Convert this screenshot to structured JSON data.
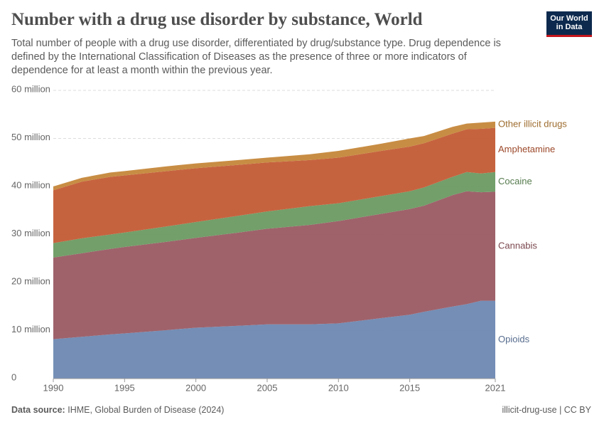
{
  "header": {
    "logo_line1": "Our World",
    "logo_line2": "in Data"
  },
  "footer": {
    "source_label": "Data source:",
    "source": "IHME, Global Burden of Disease (2024)",
    "slug": "illicit-drug-use | CC BY"
  },
  "chart_data": {
    "type": "stacked-area",
    "title": "Number with a drug use disorder by substance, World",
    "subtitle": "Total number of people with a drug use disorder, differentiated by drug/substance type. Drug dependence is defined by the International Classification of Diseases as the presence of three or more indicators of dependence for at least a month within the previous year.",
    "x": [
      1990,
      1992,
      1994,
      1995,
      1998,
      2000,
      2003,
      2005,
      2008,
      2010,
      2013,
      2015,
      2016,
      2018,
      2019,
      2020,
      2021
    ],
    "xlim": [
      1990,
      2021
    ],
    "xticks": [
      1990,
      1995,
      2000,
      2005,
      2010,
      2015,
      2021
    ],
    "ylim": [
      0,
      60
    ],
    "yticks": [
      0,
      {
        "value": 10,
        "label": "10 million"
      },
      {
        "value": 20,
        "label": "20 million"
      },
      {
        "value": 30,
        "label": "30 million"
      },
      {
        "value": 40,
        "label": "40 million"
      },
      {
        "value": 50,
        "label": "50 million"
      },
      {
        "value": 60,
        "label": "60 million"
      }
    ],
    "grid": true,
    "series": [
      {
        "name": "Opioids",
        "color": "#6d88b2",
        "values": [
          8.2,
          8.7,
          9.2,
          9.4,
          10.1,
          10.6,
          11.0,
          11.3,
          11.3,
          11.5,
          12.6,
          13.3,
          13.9,
          15.0,
          15.5,
          16.2,
          16.2
        ]
      },
      {
        "name": "Cannabis",
        "color": "#9a5a63",
        "values": [
          17.0,
          17.4,
          17.8,
          18.0,
          18.4,
          18.7,
          19.4,
          19.9,
          20.7,
          21.3,
          21.7,
          22.0,
          22.1,
          23.2,
          23.5,
          22.6,
          22.7
        ]
      },
      {
        "name": "Cocaine",
        "color": "#6c9a62",
        "values": [
          3.0,
          3.1,
          3.0,
          3.0,
          3.2,
          3.3,
          3.5,
          3.6,
          3.9,
          3.7,
          3.7,
          3.7,
          3.8,
          3.8,
          4.0,
          3.9,
          4.1
        ]
      },
      {
        "name": "Amphetamine",
        "color": "#c35b35",
        "values": [
          11.0,
          11.8,
          12.0,
          11.9,
          11.5,
          11.2,
          10.6,
          10.2,
          9.6,
          9.5,
          9.4,
          9.3,
          9.2,
          9.0,
          8.9,
          9.3,
          9.2
        ]
      },
      {
        "name": "Other illicit drugs",
        "color": "#c5873a",
        "values": [
          0.8,
          0.8,
          0.9,
          0.9,
          1.0,
          1.0,
          1.0,
          1.0,
          1.2,
          1.4,
          1.5,
          1.7,
          1.5,
          1.4,
          1.2,
          1.3,
          1.3
        ]
      }
    ]
  }
}
